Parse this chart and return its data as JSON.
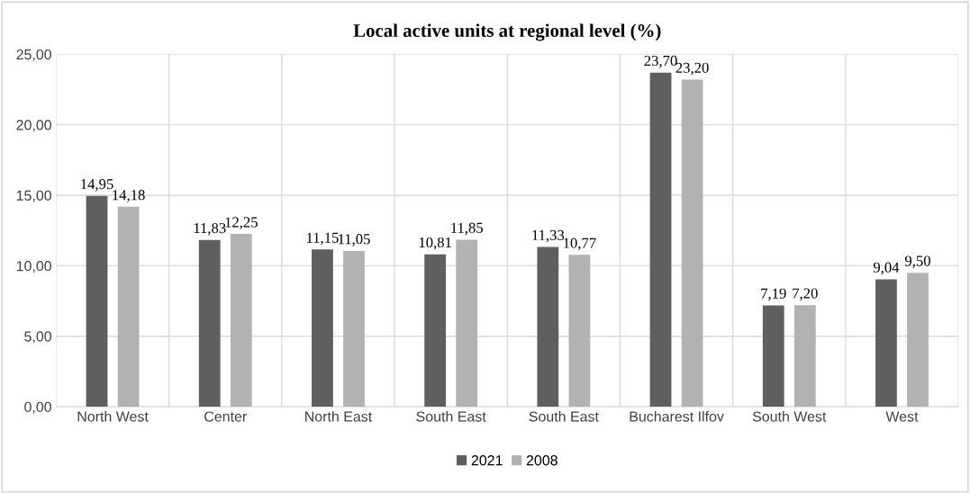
{
  "chart_data": {
    "type": "bar",
    "title": "Local active units at regional level (%)",
    "categories": [
      "North West",
      "Center",
      "North East",
      "South East",
      "South East",
      "Bucharest Ilfov",
      "South West",
      "West"
    ],
    "series": [
      {
        "name": "2021",
        "color": "#5f5f5f",
        "values": [
          14.95,
          11.83,
          11.15,
          10.81,
          11.33,
          23.7,
          7.19,
          9.04
        ],
        "value_labels": [
          "14,95",
          "11,83",
          "11,15",
          "10,81",
          "11,33",
          "23,70",
          "7,19",
          "9,04"
        ]
      },
      {
        "name": "2008",
        "color": "#b2b2b2",
        "values": [
          14.18,
          12.25,
          11.05,
          11.85,
          10.77,
          23.2,
          7.2,
          9.5
        ],
        "value_labels": [
          "14,18",
          "12,25",
          "11,05",
          "11,85",
          "10,77",
          "23,20",
          "7,20",
          "9,50"
        ]
      }
    ],
    "ylim": [
      0,
      25
    ],
    "yticks": [
      {
        "value": 0,
        "label": "0,00"
      },
      {
        "value": 5,
        "label": "5,00"
      },
      {
        "value": 10,
        "label": "10,00"
      },
      {
        "value": 15,
        "label": "15,00"
      },
      {
        "value": 20,
        "label": "20,00"
      },
      {
        "value": 25,
        "label": "25,00"
      }
    ],
    "grid": true,
    "legend": "bottom"
  }
}
